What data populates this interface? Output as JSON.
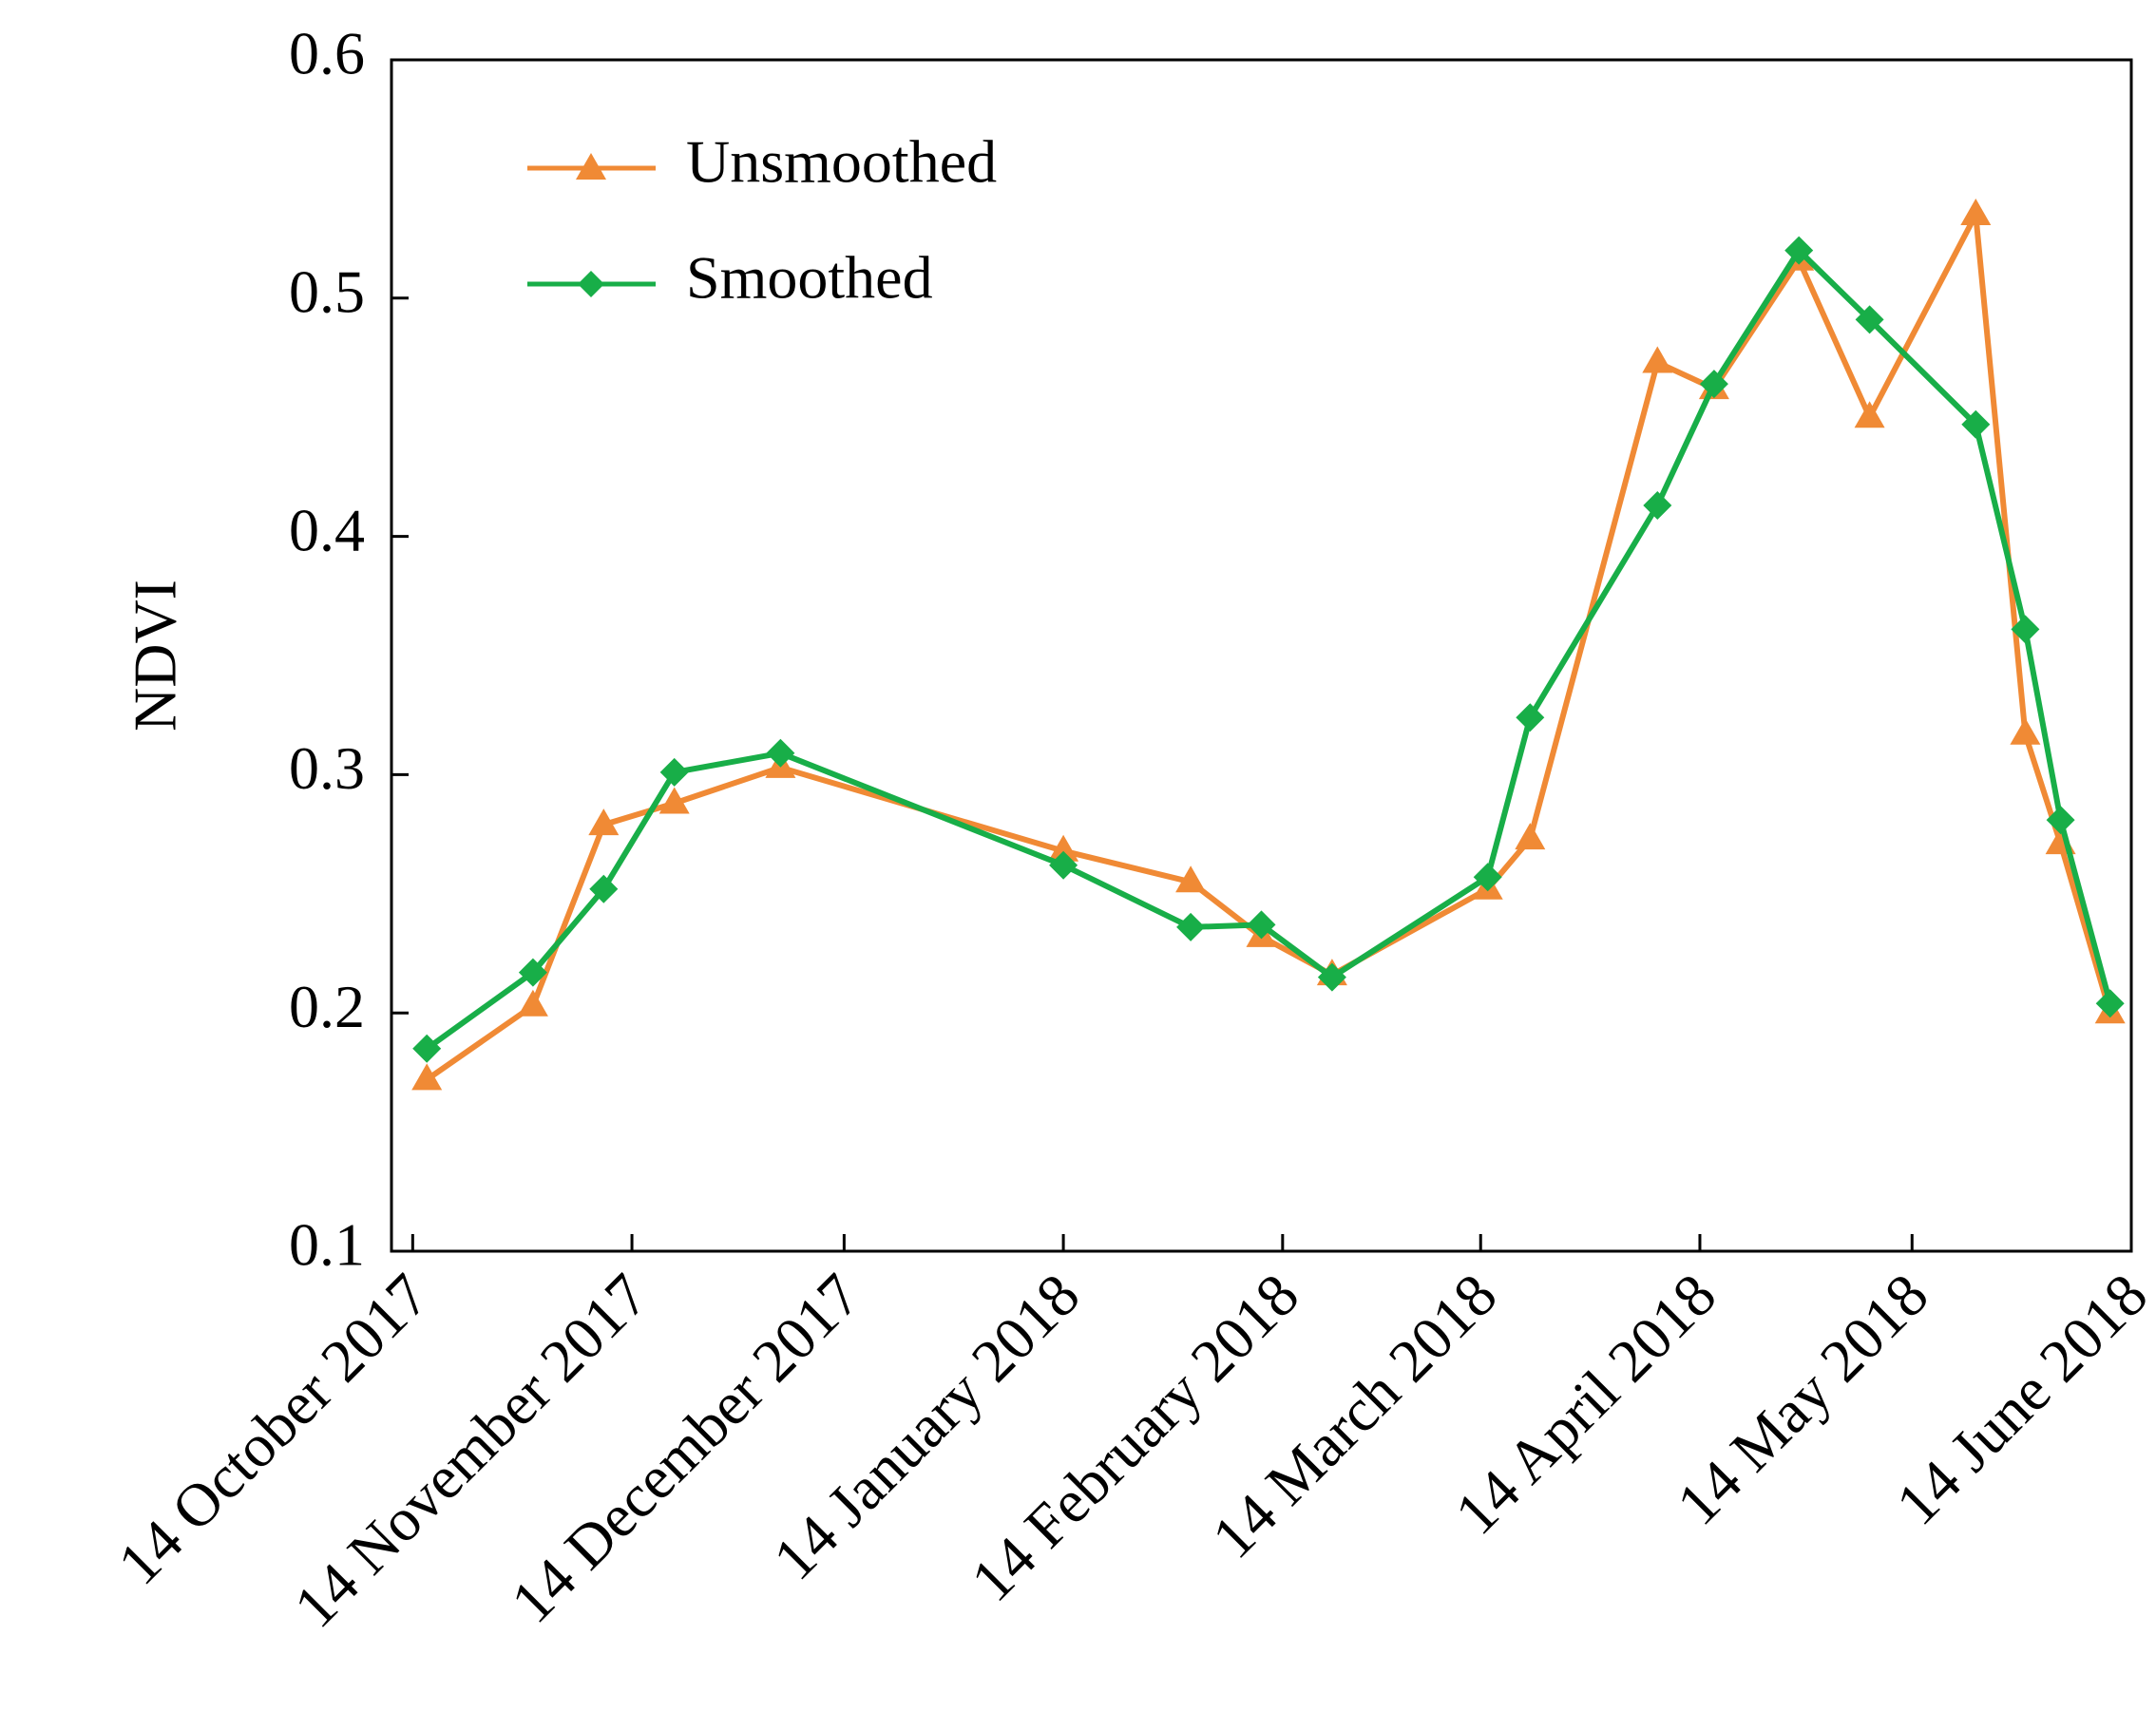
{
  "chart_data": {
    "type": "line",
    "title": "",
    "xlabel": "",
    "ylabel": "NDVI",
    "x_dates": [
      "2017-10-14",
      "2017-11-14",
      "2017-12-14",
      "2018-01-14",
      "2018-02-14",
      "2018-03-14",
      "2018-04-14",
      "2018-05-14",
      "2018-06-14"
    ],
    "x_tick_labels": [
      "14 October 2017",
      "14 November 2017",
      "14 December 2017",
      "14 January 2018",
      "14 February 2018",
      "14 March 2018",
      "14 April 2018",
      "14 May 2018",
      "14 June 2018"
    ],
    "x_unit": "days since 14 October 2017",
    "xlim": [
      -3,
      243
    ],
    "ylim": [
      0.1,
      0.6
    ],
    "y_ticks": [
      0.1,
      0.2,
      0.3,
      0.4,
      0.5,
      0.6
    ],
    "y_tick_labels": [
      "0.1",
      "0.2",
      "0.3",
      "0.4",
      "0.5",
      "0.6"
    ],
    "legend_position": "top-left",
    "series": [
      {
        "name": "Unsmoothed",
        "color": "#F08A35",
        "marker": "triangle",
        "x": [
          2,
          17,
          27,
          37,
          52,
          92,
          110,
          120,
          130,
          152,
          158,
          176,
          184,
          196,
          206,
          221,
          228,
          233,
          240
        ],
        "y": [
          0.172,
          0.203,
          0.279,
          0.288,
          0.303,
          0.268,
          0.255,
          0.232,
          0.216,
          0.252,
          0.273,
          0.473,
          0.462,
          0.516,
          0.45,
          0.535,
          0.317,
          0.271,
          0.2
        ]
      },
      {
        "name": "Smoothed",
        "color": "#18AE48",
        "marker": "diamond",
        "x": [
          2,
          17,
          27,
          37,
          52,
          92,
          110,
          120,
          130,
          152,
          158,
          176,
          184,
          196,
          206,
          221,
          228,
          233,
          240
        ],
        "y": [
          0.185,
          0.217,
          0.252,
          0.301,
          0.309,
          0.262,
          0.236,
          0.237,
          0.215,
          0.257,
          0.324,
          0.413,
          0.464,
          0.52,
          0.491,
          0.447,
          0.361,
          0.281,
          0.204
        ]
      }
    ]
  }
}
